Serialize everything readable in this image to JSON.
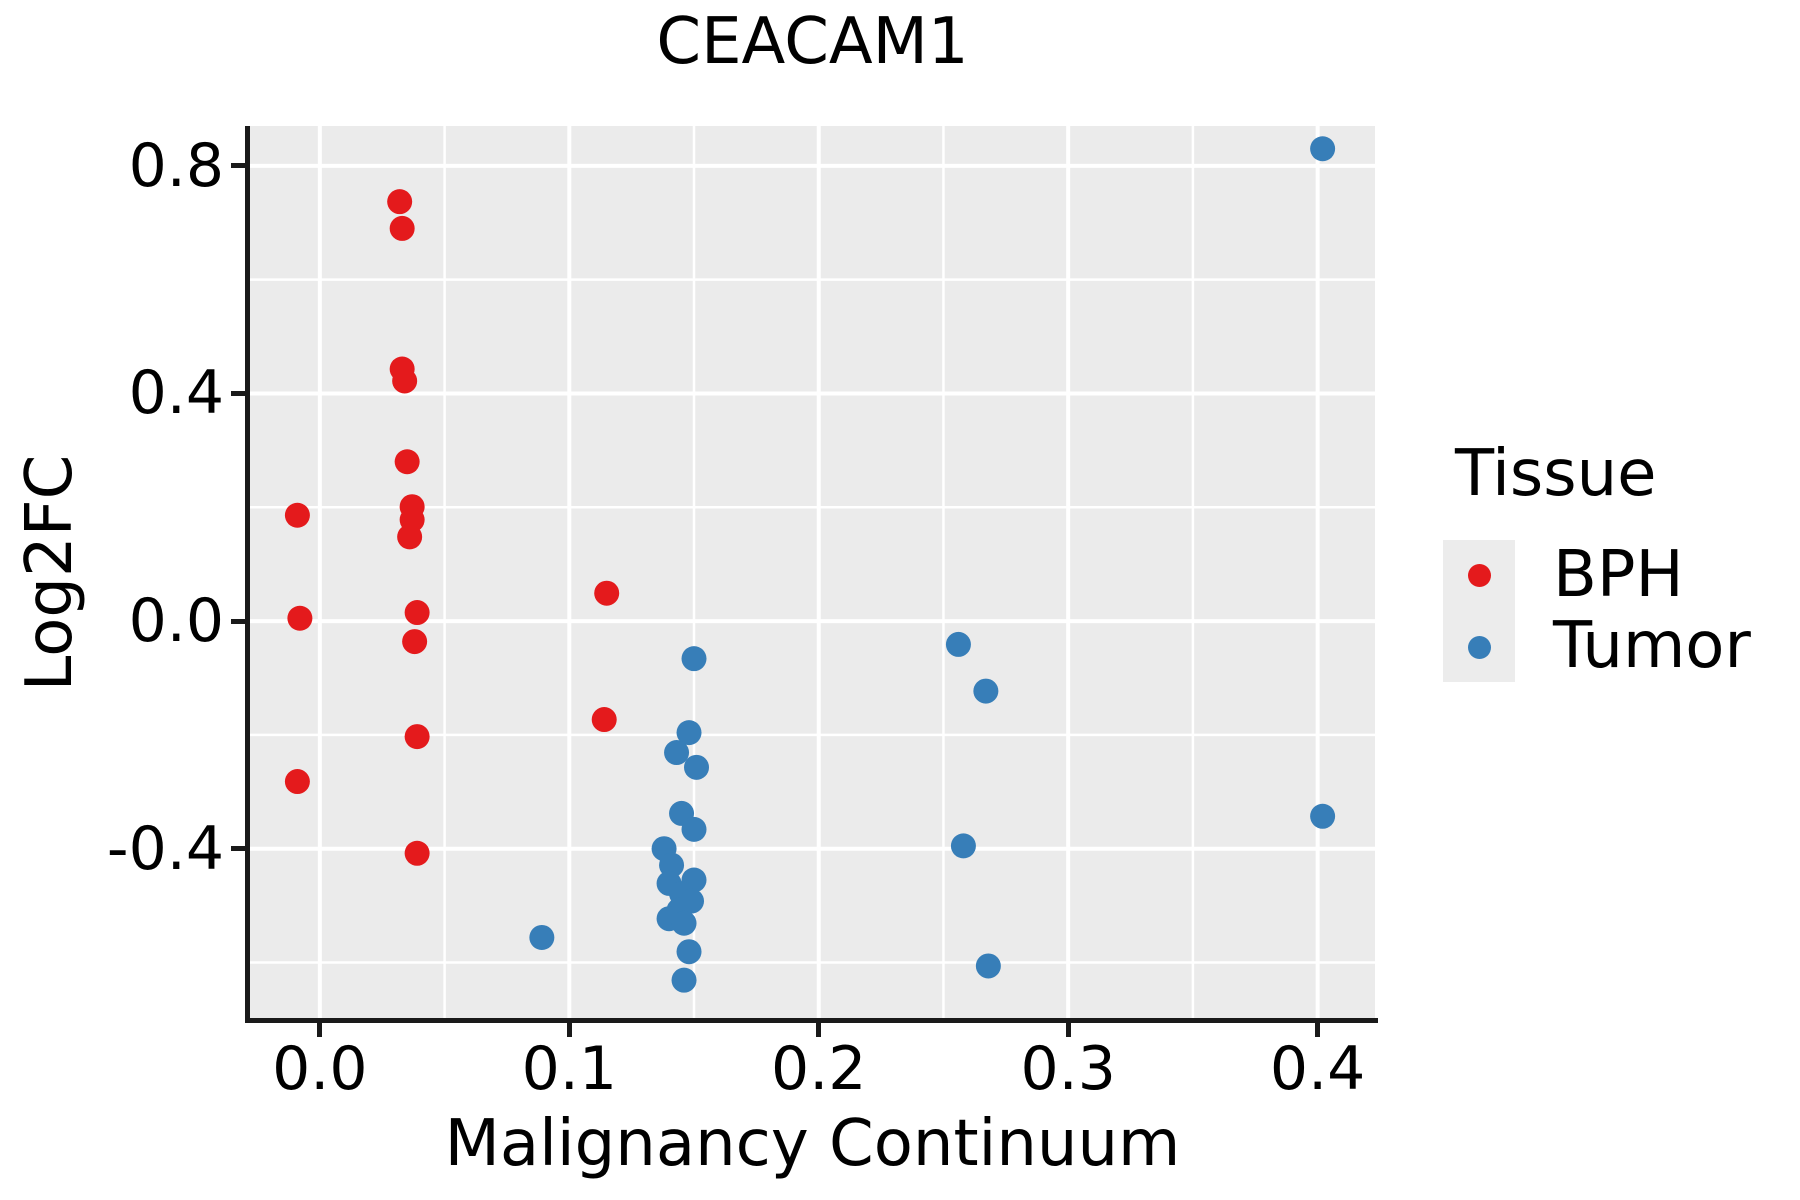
{
  "chart_data": {
    "type": "scatter",
    "title": "CEACAM1",
    "xlabel": "Malignancy Continuum",
    "ylabel": "Log2FC",
    "xlim": [
      -0.028,
      0.423
    ],
    "ylim": [
      -0.701,
      0.87
    ],
    "x_major_ticks": [
      0.0,
      0.1,
      0.2,
      0.3,
      0.4
    ],
    "x_tick_labels": [
      "0.0",
      "0.1",
      "0.2",
      "0.3",
      "0.4"
    ],
    "x_minor_ticks": [
      0.05,
      0.15,
      0.25,
      0.35
    ],
    "y_major_ticks": [
      0.8,
      0.4,
      0.0,
      -0.4
    ],
    "y_tick_labels": [
      "0.8",
      "0.4",
      "0.0",
      "-0.4"
    ],
    "y_minor_ticks": [
      0.6,
      0.2,
      -0.2,
      -0.6
    ],
    "grid": true,
    "panel_background": "#EBEBEB",
    "grid_color": "#FFFFFF",
    "marker_radius_px": 12.5,
    "legend": {
      "title": "Tissue",
      "position": "right",
      "key_background": "#ECECEC",
      "entries": [
        {
          "label": "BPH",
          "color": "#E41A1C"
        },
        {
          "label": "Tumor",
          "color": "#377EB8"
        }
      ]
    },
    "series": [
      {
        "name": "BPH",
        "color": "#E41A1C",
        "points": [
          [
            -0.009,
            0.186
          ],
          [
            -0.008,
            0.005
          ],
          [
            -0.009,
            -0.282
          ],
          [
            0.032,
            0.737
          ],
          [
            0.033,
            0.69
          ],
          [
            0.033,
            0.443
          ],
          [
            0.034,
            0.422
          ],
          [
            0.035,
            0.28
          ],
          [
            0.037,
            0.201
          ],
          [
            0.037,
            0.178
          ],
          [
            0.036,
            0.148
          ],
          [
            0.039,
            0.015
          ],
          [
            0.038,
            -0.036
          ],
          [
            0.039,
            -0.203
          ],
          [
            0.039,
            -0.408
          ],
          [
            0.115,
            0.049
          ],
          [
            0.114,
            -0.173
          ]
        ]
      },
      {
        "name": "Tumor",
        "color": "#377EB8",
        "points": [
          [
            0.089,
            -0.556
          ],
          [
            0.15,
            -0.066
          ],
          [
            0.148,
            -0.196
          ],
          [
            0.143,
            -0.231
          ],
          [
            0.151,
            -0.257
          ],
          [
            0.145,
            -0.338
          ],
          [
            0.15,
            -0.366
          ],
          [
            0.138,
            -0.4
          ],
          [
            0.141,
            -0.429
          ],
          [
            0.15,
            -0.455
          ],
          [
            0.14,
            -0.461
          ],
          [
            0.145,
            -0.479
          ],
          [
            0.149,
            -0.492
          ],
          [
            0.144,
            -0.508
          ],
          [
            0.14,
            -0.523
          ],
          [
            0.146,
            -0.531
          ],
          [
            0.148,
            -0.581
          ],
          [
            0.146,
            -0.631
          ],
          [
            0.256,
            -0.041
          ],
          [
            0.267,
            -0.123
          ],
          [
            0.258,
            -0.395
          ],
          [
            0.268,
            -0.606
          ],
          [
            0.402,
            0.83
          ],
          [
            0.402,
            -0.343
          ]
        ]
      }
    ]
  }
}
